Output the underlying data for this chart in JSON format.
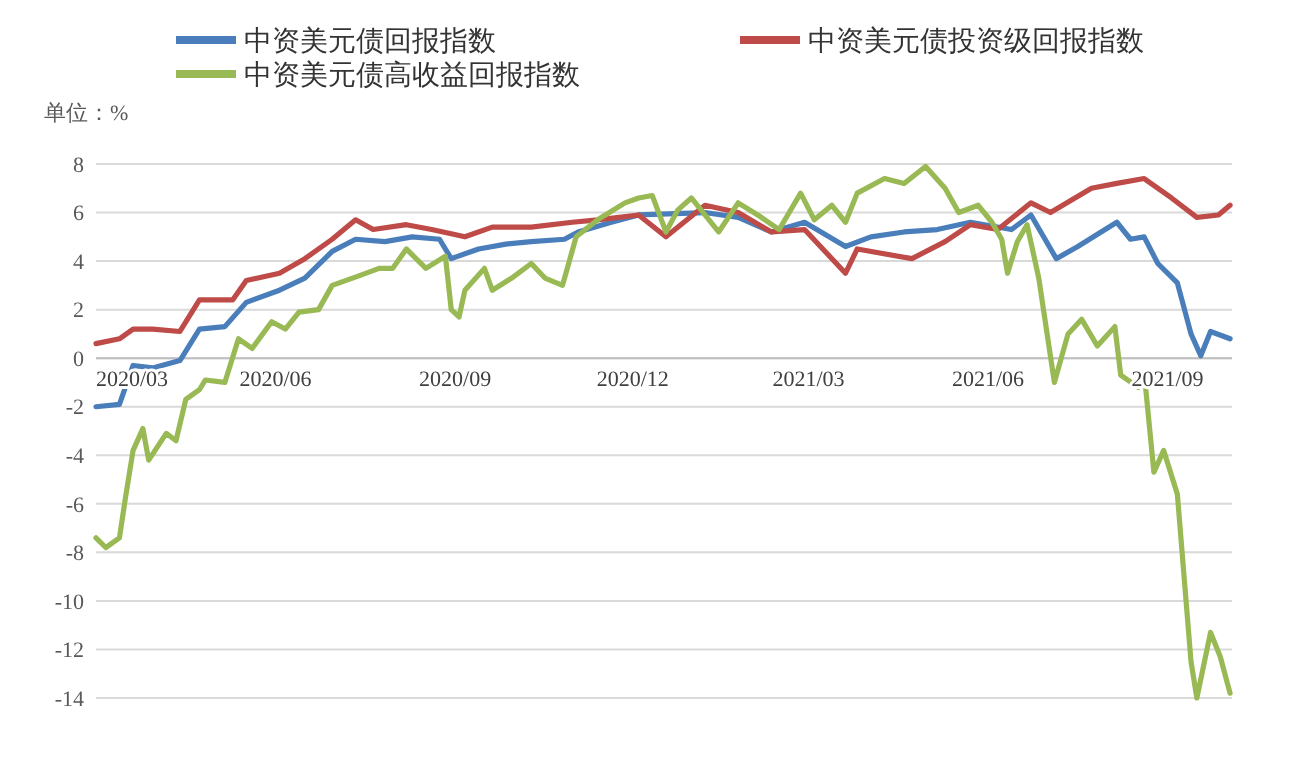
{
  "chart_data": {
    "type": "line",
    "ylabel": "单位：%",
    "xlim": [
      "2020-03-01",
      "2021-10-04"
    ],
    "ylim": [
      -14,
      8
    ],
    "xticks": [
      {
        "value": "2020-03-01",
        "label": "2020/03"
      },
      {
        "value": "2020-06-01",
        "label": "2020/06"
      },
      {
        "value": "2020-09-01",
        "label": "2020/09"
      },
      {
        "value": "2020-12-01",
        "label": "2020/12"
      },
      {
        "value": "2021-03-01",
        "label": "2021/03"
      },
      {
        "value": "2021-06-01",
        "label": "2021/06"
      },
      {
        "value": "2021-09-01",
        "label": "2021/09"
      }
    ],
    "yticks": [
      -14,
      -12,
      -10,
      -8,
      -6,
      -4,
      -2,
      0,
      2,
      4,
      6,
      8
    ],
    "grid": "y",
    "legend": "top",
    "marker": "none",
    "line_style": "solid",
    "series": [
      {
        "name": "中资美元债回报指数",
        "color": "#4a7ebb",
        "x": [
          "2020-03-01",
          "2020-03-13",
          "2020-03-20",
          "2020-03-30",
          "2020-04-13",
          "2020-04-23",
          "2020-05-06",
          "2020-05-17",
          "2020-06-03",
          "2020-06-16",
          "2020-06-30",
          "2020-07-12",
          "2020-07-27",
          "2020-08-10",
          "2020-08-24",
          "2020-08-30",
          "2020-09-13",
          "2020-09-27",
          "2020-10-10",
          "2020-10-27",
          "2020-11-03",
          "2020-11-20",
          "2020-12-04",
          "2021-01-07",
          "2021-01-24",
          "2021-02-10",
          "2021-02-27",
          "2021-03-20",
          "2021-04-02",
          "2021-04-19",
          "2021-05-06",
          "2021-05-23",
          "2021-06-13",
          "2021-06-23",
          "2021-07-06",
          "2021-07-17",
          "2021-07-31",
          "2021-08-06",
          "2021-08-13",
          "2021-08-20",
          "2021-08-27",
          "2021-09-06",
          "2021-09-13",
          "2021-09-18",
          "2021-09-23",
          "2021-10-03"
        ],
        "values": [
          -2.0,
          -1.9,
          -0.3,
          -0.4,
          -0.1,
          1.2,
          1.3,
          2.3,
          2.8,
          3.3,
          4.4,
          4.9,
          4.8,
          5.0,
          4.9,
          4.1,
          4.5,
          4.7,
          4.8,
          4.9,
          5.2,
          5.6,
          5.9,
          6.0,
          5.8,
          5.2,
          5.6,
          4.6,
          5.0,
          5.2,
          5.3,
          5.6,
          5.3,
          5.9,
          4.1,
          4.6,
          5.3,
          5.6,
          4.9,
          5.0,
          3.9,
          3.1,
          1.0,
          0.1,
          1.1,
          0.8
        ]
      },
      {
        "name": "中资美元债投资级回报指数",
        "color": "#be4b48",
        "x": [
          "2020-03-01",
          "2020-03-13",
          "2020-03-20",
          "2020-03-30",
          "2020-04-13",
          "2020-04-23",
          "2020-05-10",
          "2020-05-17",
          "2020-06-03",
          "2020-06-16",
          "2020-06-30",
          "2020-07-12",
          "2020-07-21",
          "2020-08-07",
          "2020-08-20",
          "2020-09-06",
          "2020-09-20",
          "2020-10-10",
          "2020-10-31",
          "2020-11-13",
          "2020-12-04",
          "2020-12-18",
          "2021-01-07",
          "2021-01-24",
          "2021-02-10",
          "2021-02-27",
          "2021-03-20",
          "2021-03-26",
          "2021-04-23",
          "2021-05-10",
          "2021-05-23",
          "2021-06-06",
          "2021-06-23",
          "2021-07-03",
          "2021-07-24",
          "2021-08-06",
          "2021-08-20",
          "2021-09-03",
          "2021-09-16",
          "2021-09-27",
          "2021-10-03"
        ],
        "values": [
          0.6,
          0.8,
          1.2,
          1.2,
          1.1,
          2.4,
          2.4,
          3.2,
          3.5,
          4.1,
          4.9,
          5.7,
          5.3,
          5.5,
          5.3,
          5.0,
          5.4,
          5.4,
          5.6,
          5.7,
          5.9,
          5.0,
          6.3,
          6.0,
          5.2,
          5.3,
          3.5,
          4.5,
          4.1,
          4.8,
          5.5,
          5.3,
          6.4,
          6.0,
          7.0,
          7.2,
          7.4,
          6.6,
          5.8,
          5.9,
          6.3
        ]
      },
      {
        "name": "中资美元债高收益回报指数",
        "color": "#98b954",
        "x": [
          "2020-03-01",
          "2020-03-06",
          "2020-03-13",
          "2020-03-16",
          "2020-03-20",
          "2020-03-25",
          "2020-03-28",
          "2020-04-06",
          "2020-04-11",
          "2020-04-16",
          "2020-04-23",
          "2020-04-26",
          "2020-05-06",
          "2020-05-13",
          "2020-05-20",
          "2020-05-30",
          "2020-06-06",
          "2020-06-13",
          "2020-06-23",
          "2020-06-30",
          "2020-07-14",
          "2020-07-24",
          "2020-07-31",
          "2020-08-07",
          "2020-08-17",
          "2020-08-27",
          "2020-08-30",
          "2020-09-03",
          "2020-09-06",
          "2020-09-16",
          "2020-09-20",
          "2020-09-30",
          "2020-10-10",
          "2020-10-17",
          "2020-10-26",
          "2020-11-02",
          "2020-11-13",
          "2020-11-27",
          "2020-12-04",
          "2020-12-11",
          "2020-12-18",
          "2020-12-24",
          "2020-12-31",
          "2021-01-14",
          "2021-01-24",
          "2021-02-03",
          "2021-02-14",
          "2021-02-25",
          "2021-03-04",
          "2021-03-13",
          "2021-03-20",
          "2021-03-26",
          "2021-04-09",
          "2021-04-19",
          "2021-04-30",
          "2021-05-10",
          "2021-05-17",
          "2021-05-27",
          "2021-06-03",
          "2021-06-08",
          "2021-06-11",
          "2021-06-16",
          "2021-06-21",
          "2021-06-27",
          "2021-07-05",
          "2021-07-12",
          "2021-07-19",
          "2021-07-27",
          "2021-08-05",
          "2021-08-08",
          "2021-08-17",
          "2021-08-20",
          "2021-08-25",
          "2021-08-30",
          "2021-09-06",
          "2021-09-13",
          "2021-09-16",
          "2021-09-23",
          "2021-09-28",
          "2021-10-03"
        ],
        "values": [
          -7.4,
          -7.8,
          -7.4,
          -5.8,
          -3.8,
          -2.9,
          -4.2,
          -3.1,
          -3.4,
          -1.7,
          -1.3,
          -0.9,
          -1.0,
          0.8,
          0.4,
          1.5,
          1.2,
          1.9,
          2.0,
          3.0,
          3.4,
          3.7,
          3.7,
          4.5,
          3.7,
          4.2,
          2.0,
          1.7,
          2.8,
          3.7,
          2.8,
          3.3,
          3.9,
          3.3,
          3.0,
          5.0,
          5.7,
          6.4,
          6.6,
          6.7,
          5.2,
          6.1,
          6.6,
          5.2,
          6.4,
          5.9,
          5.3,
          6.8,
          5.7,
          6.3,
          5.6,
          6.8,
          7.4,
          7.2,
          7.9,
          7.0,
          6.0,
          6.3,
          5.6,
          4.9,
          3.5,
          4.8,
          5.5,
          3.3,
          -1.0,
          1.0,
          1.6,
          0.5,
          1.3,
          -0.7,
          -1.2,
          -0.6,
          -4.7,
          -3.8,
          -5.6,
          -12.5,
          -14.0,
          -11.3,
          -12.3,
          -13.8
        ]
      }
    ]
  }
}
